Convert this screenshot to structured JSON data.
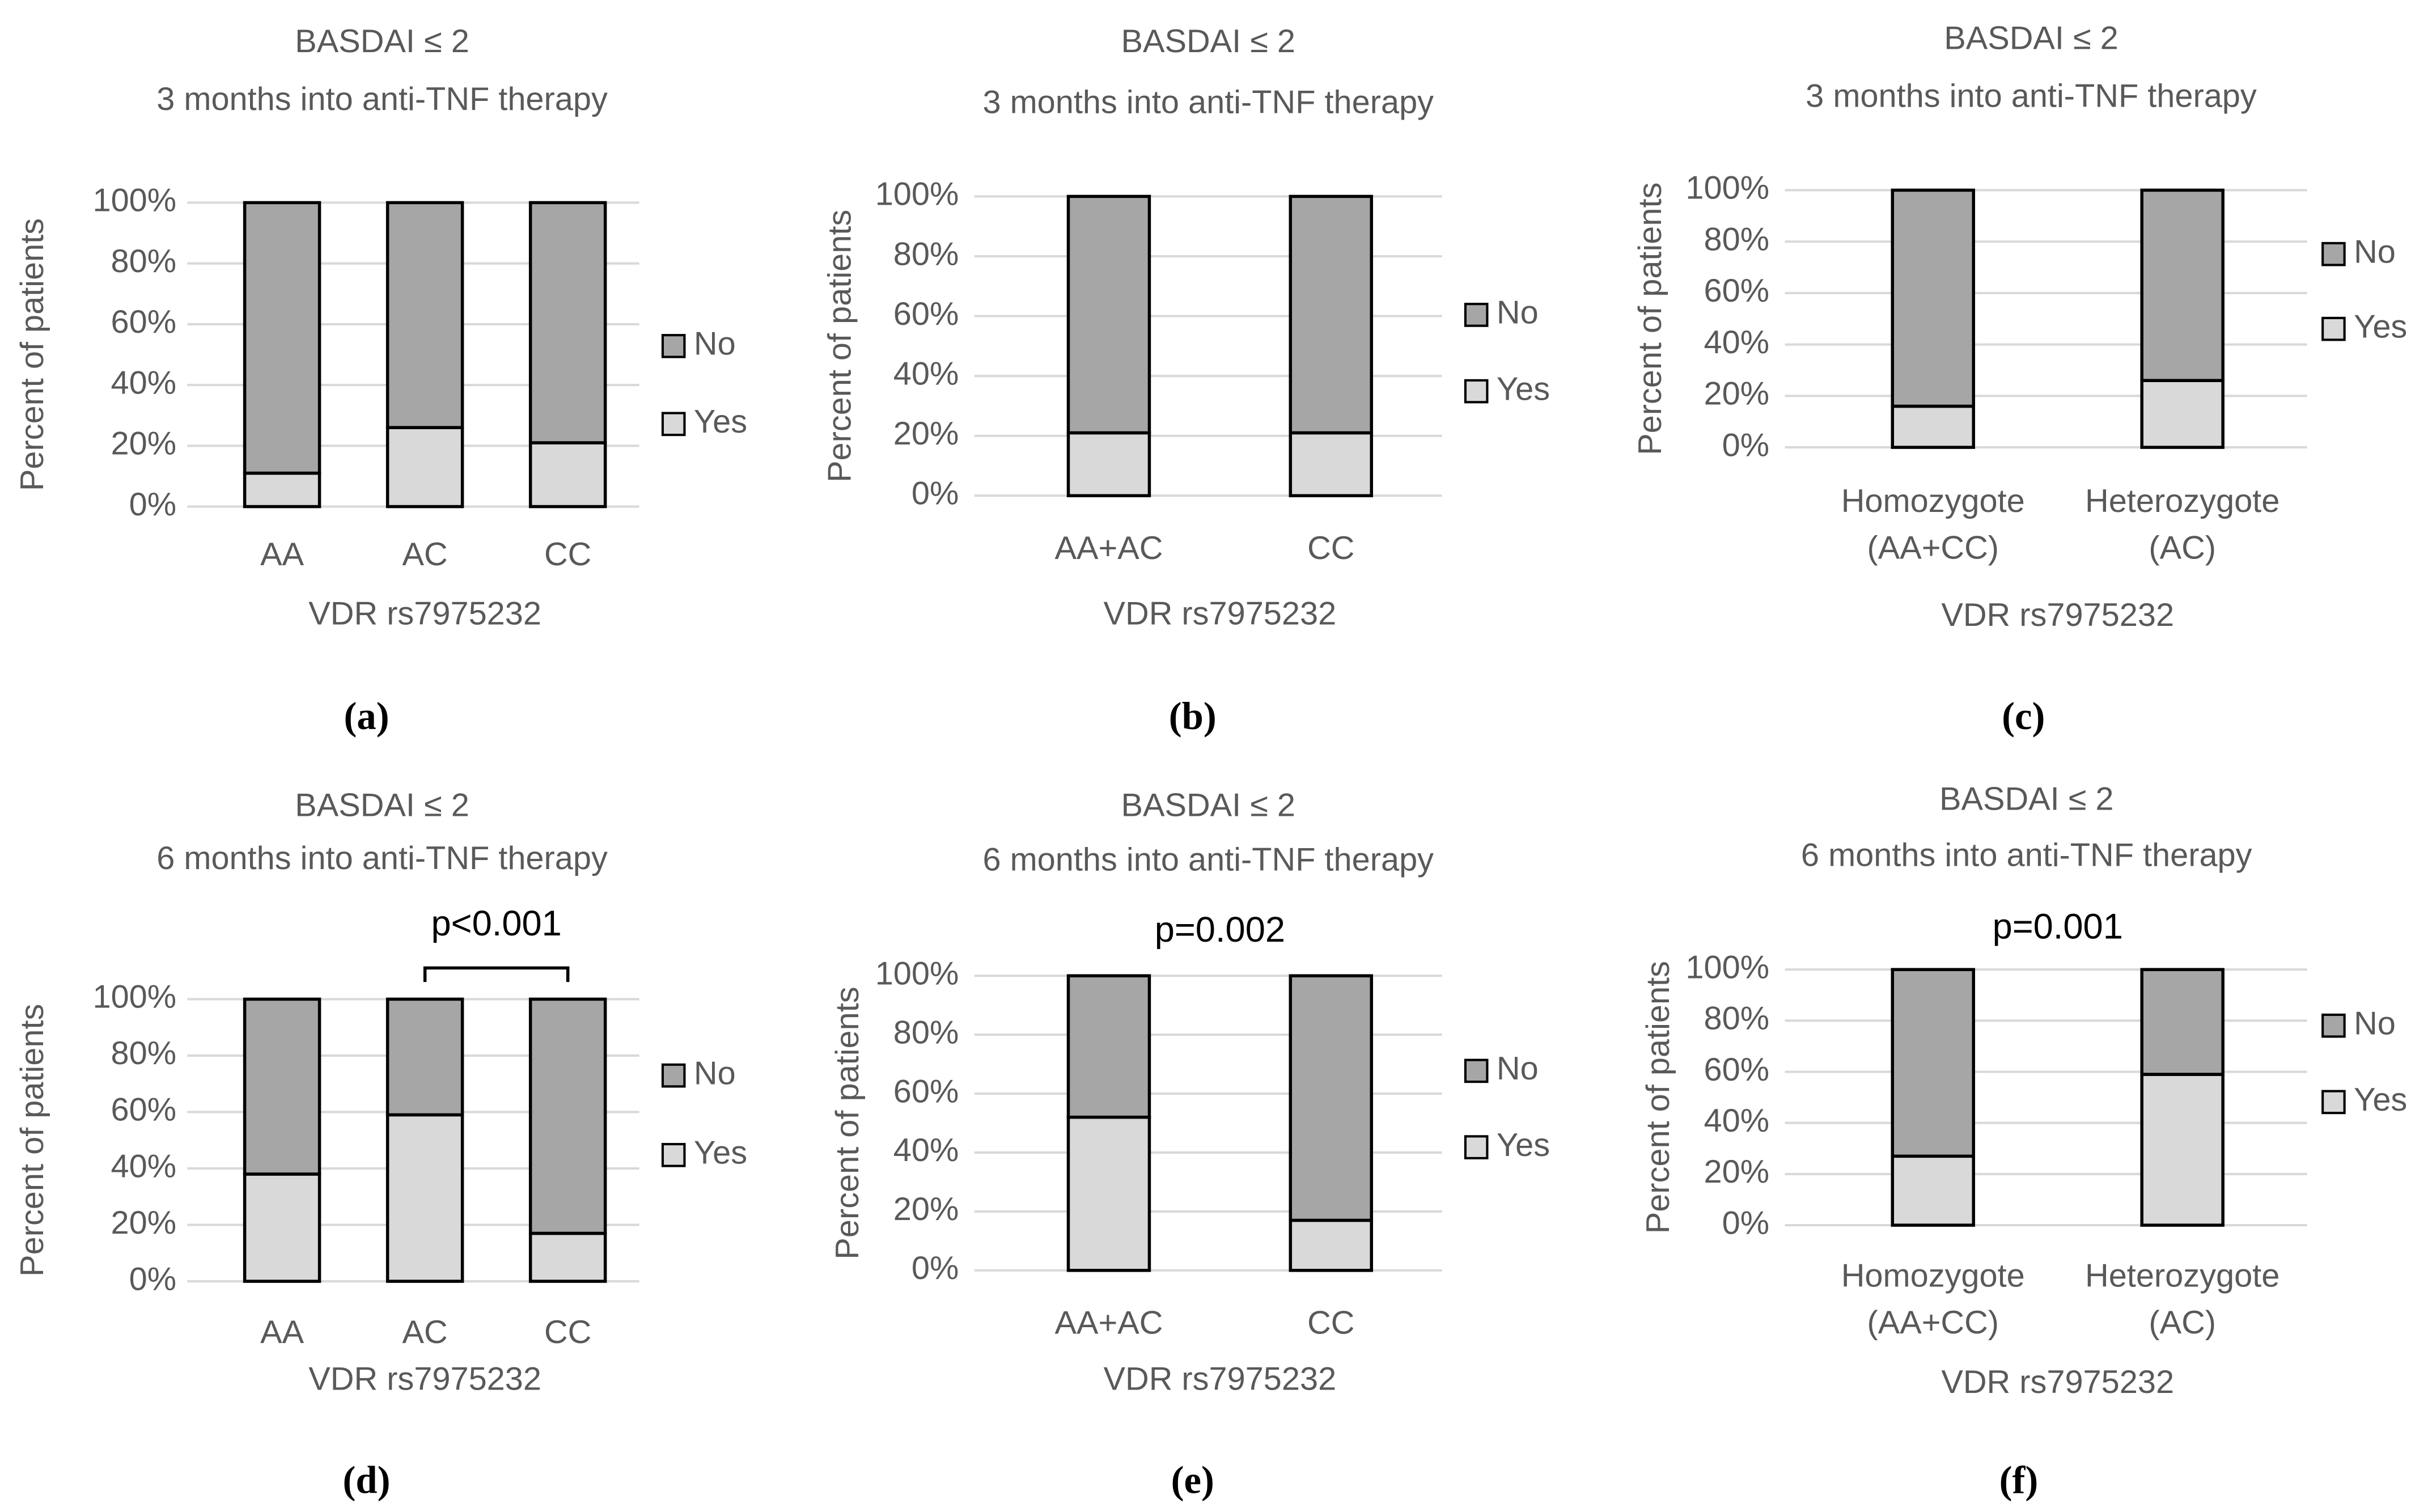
{
  "chart_data": [
    {
      "type": "stacked_bar",
      "label": "(a)",
      "title": "BASDAI ≤ 2",
      "subtitle": "3 months into anti-TNF therapy",
      "x_label": "VDR rs7975232",
      "y_label": "Percent of patients",
      "categories": [
        "AA",
        "AC",
        "CC"
      ],
      "series": [
        {
          "name": "Yes",
          "color": "#d9d9d9",
          "values": [
            11,
            26,
            21
          ]
        },
        {
          "name": "No",
          "color": "#a6a6a6",
          "values": [
            89,
            74,
            79
          ]
        }
      ],
      "ylim": [
        0,
        100
      ],
      "yticks": [
        {
          "value": 0,
          "label": "0%"
        },
        {
          "value": 20,
          "label": "20%"
        },
        {
          "value": 40,
          "label": "40%"
        },
        {
          "value": 60,
          "label": "60%"
        },
        {
          "value": 80,
          "label": "80%"
        },
        {
          "value": 100,
          "label": "100%"
        }
      ],
      "grid": true,
      "legend": "right"
    },
    {
      "type": "stacked_bar",
      "label": "(b)",
      "title": "BASDAI ≤ 2",
      "subtitle": "3 months into anti-TNF therapy",
      "x_label": "VDR rs7975232",
      "y_label": "Percent of patients",
      "categories": [
        "AA+AC",
        "CC"
      ],
      "series": [
        {
          "name": "Yes",
          "color": "#d9d9d9",
          "values": [
            21,
            21
          ]
        },
        {
          "name": "No",
          "color": "#a6a6a6",
          "values": [
            79,
            79
          ]
        }
      ],
      "ylim": [
        0,
        100
      ],
      "yticks": [
        {
          "value": 0,
          "label": "0%"
        },
        {
          "value": 20,
          "label": "20%"
        },
        {
          "value": 40,
          "label": "40%"
        },
        {
          "value": 60,
          "label": "60%"
        },
        {
          "value": 80,
          "label": "80%"
        },
        {
          "value": 100,
          "label": "100%"
        }
      ],
      "grid": true,
      "legend": "right"
    },
    {
      "type": "stacked_bar",
      "label": "(c)",
      "title": "BASDAI ≤ 2",
      "subtitle": "3 months into anti-TNF therapy",
      "x_label": "VDR rs7975232",
      "y_label": "Percent of patients",
      "categories": [
        "Homozygote\n(AA+CC)",
        "Heterozygote\n(AC)"
      ],
      "series": [
        {
          "name": "Yes",
          "color": "#d9d9d9",
          "values": [
            16,
            26
          ]
        },
        {
          "name": "No",
          "color": "#a6a6a6",
          "values": [
            84,
            74
          ]
        }
      ],
      "ylim": [
        0,
        100
      ],
      "yticks": [
        {
          "value": 0,
          "label": "0%"
        },
        {
          "value": 20,
          "label": "20%"
        },
        {
          "value": 40,
          "label": "40%"
        },
        {
          "value": 60,
          "label": "60%"
        },
        {
          "value": 80,
          "label": "80%"
        },
        {
          "value": 100,
          "label": "100%"
        }
      ],
      "grid": true,
      "legend": "right"
    },
    {
      "type": "stacked_bar",
      "label": "(d)",
      "title": "BASDAI ≤ 2",
      "subtitle": "6 months into anti-TNF therapy",
      "annotation": "p<0.001",
      "x_label": "VDR rs7975232",
      "y_label": "Percent of patients",
      "categories": [
        "AA",
        "AC",
        "CC"
      ],
      "series": [
        {
          "name": "Yes",
          "color": "#d9d9d9",
          "values": [
            38,
            59,
            17
          ]
        },
        {
          "name": "No",
          "color": "#a6a6a6",
          "values": [
            62,
            41,
            83
          ]
        }
      ],
      "ylim": [
        0,
        100
      ],
      "yticks": [
        {
          "value": 0,
          "label": "0%"
        },
        {
          "value": 20,
          "label": "20%"
        },
        {
          "value": 40,
          "label": "40%"
        },
        {
          "value": 60,
          "label": "60%"
        },
        {
          "value": 80,
          "label": "80%"
        },
        {
          "value": 100,
          "label": "100%"
        }
      ],
      "grid": true,
      "legend": "right"
    },
    {
      "type": "stacked_bar",
      "label": "(e)",
      "title": "BASDAI ≤ 2",
      "subtitle": "6 months into anti-TNF therapy",
      "annotation": "p=0.002",
      "x_label": "VDR rs7975232",
      "y_label": "Percent of patients",
      "categories": [
        "AA+AC",
        "CC"
      ],
      "series": [
        {
          "name": "Yes",
          "color": "#d9d9d9",
          "values": [
            52,
            17
          ]
        },
        {
          "name": "No",
          "color": "#a6a6a6",
          "values": [
            48,
            83
          ]
        }
      ],
      "ylim": [
        0,
        100
      ],
      "yticks": [
        {
          "value": 0,
          "label": "0%"
        },
        {
          "value": 20,
          "label": "20%"
        },
        {
          "value": 40,
          "label": "40%"
        },
        {
          "value": 60,
          "label": "60%"
        },
        {
          "value": 80,
          "label": "80%"
        },
        {
          "value": 100,
          "label": "100%"
        }
      ],
      "grid": true,
      "legend": "right"
    },
    {
      "type": "stacked_bar",
      "label": "(f)",
      "title": "BASDAI ≤ 2",
      "subtitle": "6 months into anti-TNF therapy",
      "annotation": "p=0.001",
      "x_label": "VDR rs7975232",
      "y_label": "Percent of patients",
      "categories": [
        "Homozygote\n(AA+CC)",
        "Heterozygote\n(AC)"
      ],
      "series": [
        {
          "name": "Yes",
          "color": "#d9d9d9",
          "values": [
            27,
            59
          ]
        },
        {
          "name": "No",
          "color": "#a6a6a6",
          "values": [
            73,
            41
          ]
        }
      ],
      "ylim": [
        0,
        100
      ],
      "yticks": [
        {
          "value": 0,
          "label": "0%"
        },
        {
          "value": 20,
          "label": "20%"
        },
        {
          "value": 40,
          "label": "40%"
        },
        {
          "value": 60,
          "label": "60%"
        },
        {
          "value": 80,
          "label": "80%"
        },
        {
          "value": 100,
          "label": "100%"
        }
      ],
      "grid": true,
      "legend": "right"
    }
  ]
}
